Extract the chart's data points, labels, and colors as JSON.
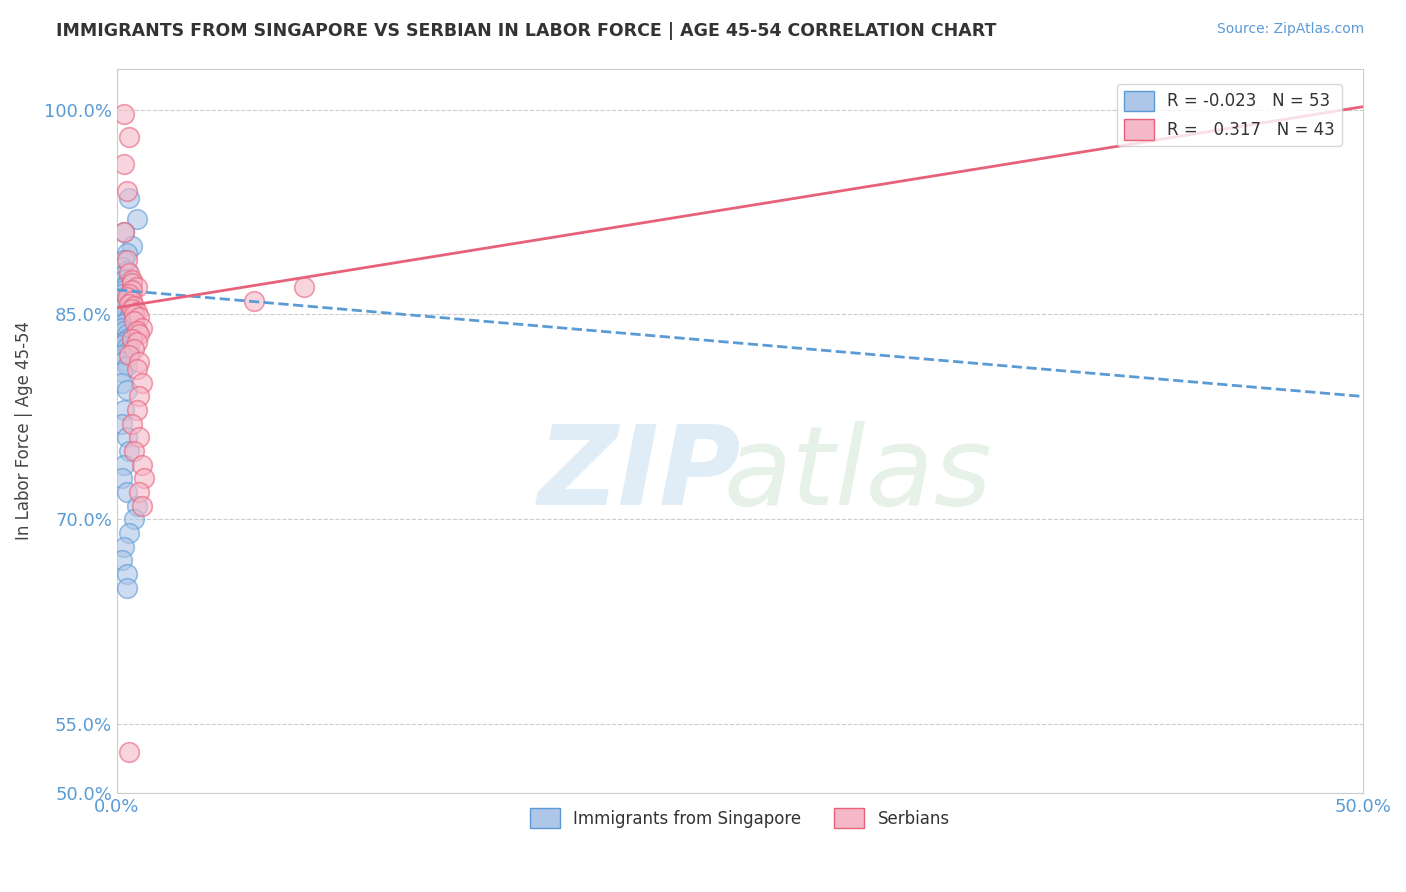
{
  "title": "IMMIGRANTS FROM SINGAPORE VS SERBIAN IN LABOR FORCE | AGE 45-54 CORRELATION CHART",
  "source_text": "Source: ZipAtlas.com",
  "ylabel": "In Labor Force | Age 45-54",
  "xlim": [
    0.0,
    0.5
  ],
  "ylim": [
    0.5,
    1.03
  ],
  "ytick_labels": [
    "50.0%",
    "55.0%",
    "70.0%",
    "85.0%",
    "100.0%"
  ],
  "ytick_vals": [
    0.5,
    0.55,
    0.7,
    0.85,
    1.0
  ],
  "xtick_labels": [
    "0.0%",
    "50.0%"
  ],
  "xtick_vals": [
    0.0,
    0.5
  ],
  "singapore_color": "#5b9bd5",
  "serbian_color": "#e8617a",
  "singapore_fill": "#aec6e8",
  "serbian_fill": "#f4b8c8",
  "singapore_R": -0.023,
  "serbian_R": 0.317,
  "singapore_N": 53,
  "serbian_N": 43,
  "singapore_x": [
    0.005,
    0.008,
    0.003,
    0.006,
    0.004,
    0.003,
    0.002,
    0.004,
    0.002,
    0.003,
    0.004,
    0.003,
    0.003,
    0.002,
    0.005,
    0.004,
    0.002,
    0.003,
    0.002,
    0.004,
    0.003,
    0.005,
    0.004,
    0.002,
    0.002,
    0.003,
    0.004,
    0.006,
    0.004,
    0.003,
    0.002,
    0.004,
    0.005,
    0.002,
    0.003,
    0.004,
    0.002,
    0.002,
    0.004,
    0.003,
    0.002,
    0.004,
    0.005,
    0.003,
    0.002,
    0.004,
    0.008,
    0.007,
    0.005,
    0.003,
    0.002,
    0.004,
    0.004
  ],
  "singapore_y": [
    0.935,
    0.92,
    0.91,
    0.9,
    0.895,
    0.89,
    0.885,
    0.882,
    0.878,
    0.875,
    0.873,
    0.87,
    0.868,
    0.865,
    0.863,
    0.86,
    0.858,
    0.856,
    0.854,
    0.852,
    0.85,
    0.848,
    0.845,
    0.843,
    0.84,
    0.838,
    0.836,
    0.834,
    0.832,
    0.83,
    0.828,
    0.826,
    0.824,
    0.82,
    0.816,
    0.812,
    0.808,
    0.8,
    0.795,
    0.78,
    0.77,
    0.76,
    0.75,
    0.74,
    0.73,
    0.72,
    0.71,
    0.7,
    0.69,
    0.68,
    0.67,
    0.66,
    0.65
  ],
  "serbian_x": [
    0.003,
    0.005,
    0.003,
    0.004,
    0.003,
    0.004,
    0.005,
    0.006,
    0.006,
    0.008,
    0.006,
    0.005,
    0.004,
    0.006,
    0.005,
    0.007,
    0.006,
    0.008,
    0.007,
    0.009,
    0.007,
    0.01,
    0.008,
    0.009,
    0.006,
    0.008,
    0.007,
    0.005,
    0.009,
    0.008,
    0.01,
    0.009,
    0.008,
    0.006,
    0.009,
    0.007,
    0.01,
    0.011,
    0.009,
    0.01,
    0.075,
    0.055,
    0.005
  ],
  "serbian_y": [
    0.997,
    0.98,
    0.96,
    0.94,
    0.91,
    0.89,
    0.88,
    0.875,
    0.873,
    0.87,
    0.868,
    0.865,
    0.863,
    0.86,
    0.858,
    0.856,
    0.854,
    0.852,
    0.85,
    0.848,
    0.845,
    0.84,
    0.838,
    0.836,
    0.832,
    0.83,
    0.825,
    0.82,
    0.815,
    0.81,
    0.8,
    0.79,
    0.78,
    0.77,
    0.76,
    0.75,
    0.74,
    0.73,
    0.72,
    0.71,
    0.87,
    0.86,
    0.53
  ],
  "sg_trend_x": [
    0.0,
    0.5
  ],
  "sg_trend_y": [
    0.868,
    0.79
  ],
  "sr_trend_x": [
    0.0,
    0.5
  ],
  "sr_trend_y": [
    0.855,
    1.002
  ]
}
